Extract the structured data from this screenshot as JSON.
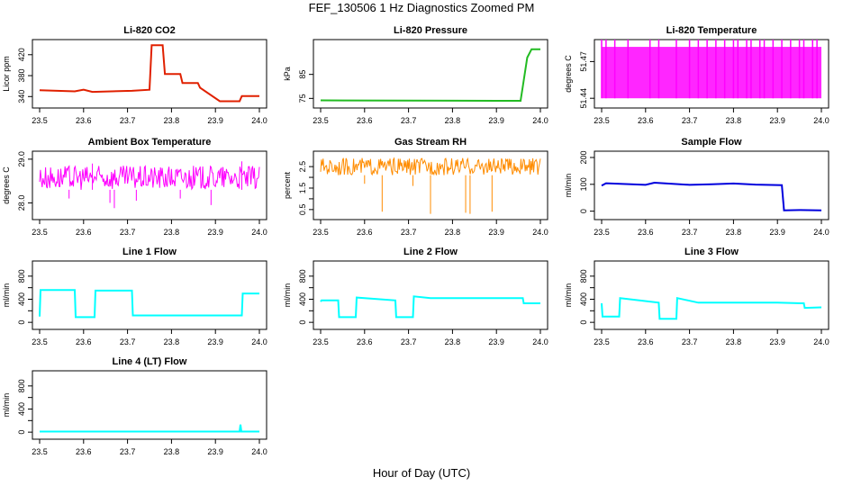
{
  "figure": {
    "title": "FEF_130506  1 Hz Diagnostics Zoomed PM",
    "xlabel": "Hour of Day (UTC)"
  },
  "chart_data": [
    {
      "type": "line",
      "title": "Li-820 CO2",
      "ylabel": "Licor ppm",
      "xlim": [
        23.5,
        24.0
      ],
      "ylim": [
        325,
        442
      ],
      "xticks": [
        "23.5",
        "23.6",
        "23.7",
        "23.8",
        "23.9",
        "24.0"
      ],
      "yticks": [
        340,
        380,
        420
      ],
      "ytick_labels": [
        "340",
        "380",
        "420"
      ],
      "color": "#e02000",
      "series": [
        {
          "x": [
            23.5,
            23.58,
            23.6,
            23.62,
            23.71,
            23.75,
            23.755,
            23.78,
            23.785,
            23.82,
            23.825,
            23.86,
            23.865,
            23.91,
            23.955,
            23.96,
            24.0
          ],
          "y": [
            352,
            350,
            353,
            349,
            351,
            353,
            438,
            438,
            383,
            383,
            366,
            366,
            357,
            331,
            331,
            341,
            341
          ]
        }
      ]
    },
    {
      "type": "line",
      "title": "Li-820 Pressure",
      "ylabel": "kPa",
      "xlim": [
        23.5,
        24.0
      ],
      "ylim": [
        72.5,
        98
      ],
      "xticks": [
        "23.5",
        "23.6",
        "23.7",
        "23.8",
        "23.9",
        "24.0"
      ],
      "yticks": [
        75,
        85
      ],
      "ytick_labels": [
        "75",
        "85"
      ],
      "color": "#22bb22",
      "series": [
        {
          "x": [
            23.5,
            23.9,
            23.955,
            23.96,
            23.97,
            23.98,
            24.0
          ],
          "y": [
            74.2,
            74.0,
            74.0,
            80.0,
            92.0,
            95.5,
            95.5
          ]
        }
      ]
    },
    {
      "type": "line",
      "title": "Li-820 Temperature",
      "ylabel": "degrees C",
      "xlim": [
        23.5,
        24.0
      ],
      "ylim": [
        51.435,
        51.485
      ],
      "xticks": [
        "23.5",
        "23.6",
        "23.7",
        "23.8",
        "23.9",
        "24.0"
      ],
      "yticks": [
        51.44,
        51.47
      ],
      "ytick_labels": [
        "51.44",
        "51.47"
      ],
      "color": "#ff00ff",
      "levels": [
        51.44,
        51.47,
        51.47
      ],
      "series": [
        {
          "x": [
            23.5,
            23.51,
            23.53,
            23.56,
            23.61,
            23.63,
            23.67,
            23.7,
            23.72,
            23.74,
            23.76,
            23.78,
            23.8,
            23.81,
            23.83,
            23.84,
            23.86,
            23.87,
            23.89,
            23.91,
            23.93,
            23.95,
            23.96,
            23.98,
            23.99
          ],
          "y": [
            51.482,
            51.482,
            51.482,
            51.482,
            51.482,
            51.482,
            51.482,
            51.482,
            51.482,
            51.482,
            51.482,
            51.482,
            51.482,
            51.482,
            51.482,
            51.482,
            51.482,
            51.482,
            51.482,
            51.482,
            51.482,
            51.482,
            51.482,
            51.482,
            51.482
          ]
        }
      ]
    },
    {
      "type": "line",
      "title": "Ambient Box Temperature",
      "ylabel": "degrees C",
      "xlim": [
        23.5,
        24.0
      ],
      "ylim": [
        27.7,
        29.1
      ],
      "xticks": [
        "23.5",
        "23.6",
        "23.7",
        "23.8",
        "23.9",
        "24.0"
      ],
      "yticks": [
        28.0,
        29.0
      ],
      "ytick_labels": [
        "28.0",
        "29.0"
      ],
      "color": "#ff00ff",
      "series": [
        {
          "x": [
            23.5,
            24.0
          ],
          "y": [
            28.55,
            28.55
          ]
        }
      ],
      "band": [
        28.3,
        28.85
      ],
      "spikes": [
        {
          "x": 23.567,
          "y": 28.1
        },
        {
          "x": 23.62,
          "y": 28.9
        },
        {
          "x": 23.66,
          "y": 28.0
        },
        {
          "x": 23.67,
          "y": 27.88
        },
        {
          "x": 23.72,
          "y": 28.05
        },
        {
          "x": 23.82,
          "y": 28.1
        },
        {
          "x": 23.89,
          "y": 27.95
        },
        {
          "x": 23.96,
          "y": 28.95
        }
      ]
    },
    {
      "type": "line",
      "title": "Gas Stream RH",
      "ylabel": "percent",
      "xlim": [
        23.5,
        24.0
      ],
      "ylim": [
        0.2,
        3.05
      ],
      "xticks": [
        "23.5",
        "23.6",
        "23.7",
        "23.8",
        "23.9",
        "24.0"
      ],
      "yticks": [
        0.5,
        1.0,
        1.5,
        2.0,
        2.5
      ],
      "ytick_labels": [
        "0.5",
        "1.5",
        "2.5"
      ],
      "color": "#ff8c00",
      "series": [
        {
          "x": [
            23.5,
            24.0
          ],
          "y": [
            2.65,
            2.65
          ]
        }
      ],
      "band": [
        2.1,
        2.9
      ],
      "spikes": [
        {
          "x": 23.64,
          "y": 0.4
        },
        {
          "x": 23.75,
          "y": 0.3
        },
        {
          "x": 23.83,
          "y": 0.35
        },
        {
          "x": 23.84,
          "y": 0.3
        },
        {
          "x": 23.89,
          "y": 0.4
        },
        {
          "x": 23.71,
          "y": 1.6
        },
        {
          "x": 23.6,
          "y": 1.7
        }
      ]
    },
    {
      "type": "line",
      "title": "Sample Flow",
      "ylabel": "ml/min",
      "xlim": [
        23.5,
        24.0
      ],
      "ylim": [
        -18,
        210
      ],
      "xticks": [
        "23.5",
        "23.6",
        "23.7",
        "23.8",
        "23.9",
        "24.0"
      ],
      "yticks": [
        0,
        100,
        200
      ],
      "ytick_labels": [
        "0",
        "100",
        "200"
      ],
      "color": "#0000dd",
      "series": [
        {
          "x": [
            23.5,
            23.51,
            23.6,
            23.62,
            23.7,
            23.75,
            23.8,
            23.85,
            23.91,
            23.915,
            23.95,
            24.0
          ],
          "y": [
            95,
            104,
            98,
            106,
            98,
            100,
            103,
            99,
            97,
            3,
            4,
            3
          ]
        }
      ]
    },
    {
      "type": "line",
      "title": "Line 1 Flow",
      "ylabel": "ml/min",
      "xlim": [
        23.5,
        24.0
      ],
      "ylim": [
        -60,
        1000
      ],
      "xticks": [
        "23.5",
        "23.6",
        "23.7",
        "23.8",
        "23.9",
        "24.0"
      ],
      "yticks": [
        0,
        200,
        400,
        600,
        800
      ],
      "ytick_labels": [
        "0",
        "400",
        "800"
      ],
      "color": "#00ffff",
      "series": [
        {
          "x": [
            23.5,
            23.502,
            23.58,
            23.582,
            23.625,
            23.627,
            23.71,
            23.712,
            23.75,
            23.96,
            23.962,
            24.0
          ],
          "y": [
            100,
            560,
            560,
            90,
            90,
            550,
            550,
            120,
            120,
            120,
            500,
            500
          ]
        }
      ]
    },
    {
      "type": "line",
      "title": "Line 2 Flow",
      "ylabel": "ml/min",
      "xlim": [
        23.5,
        24.0
      ],
      "ylim": [
        -60,
        1000
      ],
      "xticks": [
        "23.5",
        "23.6",
        "23.7",
        "23.8",
        "23.9",
        "24.0"
      ],
      "yticks": [
        0,
        200,
        400,
        600,
        800
      ],
      "ytick_labels": [
        "0",
        "400",
        "800"
      ],
      "color": "#00ffff",
      "series": [
        {
          "x": [
            23.5,
            23.502,
            23.54,
            23.542,
            23.58,
            23.582,
            23.67,
            23.672,
            23.71,
            23.712,
            23.75,
            23.96,
            23.962,
            24.0
          ],
          "y": [
            360,
            380,
            380,
            90,
            90,
            430,
            380,
            90,
            90,
            450,
            420,
            420,
            330,
            330
          ]
        }
      ]
    },
    {
      "type": "line",
      "title": "Line 3 Flow",
      "ylabel": "ml/min",
      "xlim": [
        23.5,
        24.0
      ],
      "ylim": [
        -60,
        1000
      ],
      "xticks": [
        "23.5",
        "23.6",
        "23.7",
        "23.8",
        "23.9",
        "24.0"
      ],
      "yticks": [
        0,
        200,
        400,
        600,
        800
      ],
      "ytick_labels": [
        "0",
        "400",
        "800"
      ],
      "color": "#00ffff",
      "series": [
        {
          "x": [
            23.5,
            23.502,
            23.54,
            23.542,
            23.63,
            23.632,
            23.67,
            23.672,
            23.72,
            23.9,
            23.96,
            23.962,
            24.0
          ],
          "y": [
            330,
            100,
            100,
            420,
            340,
            60,
            60,
            420,
            340,
            340,
            330,
            250,
            260
          ]
        }
      ]
    },
    {
      "type": "line",
      "title": "Line 4 (LT) Flow",
      "ylabel": "ml/min",
      "xlim": [
        23.5,
        24.0
      ],
      "ylim": [
        -60,
        1000
      ],
      "xticks": [
        "23.5",
        "23.6",
        "23.7",
        "23.8",
        "23.9",
        "24.0"
      ],
      "yticks": [
        0,
        200,
        400,
        600,
        800
      ],
      "ytick_labels": [
        "0",
        "400",
        "800"
      ],
      "color": "#00ffff",
      "series": [
        {
          "x": [
            23.5,
            23.955,
            23.957,
            23.959,
            24.0
          ],
          "y": [
            10,
            10,
            130,
            10,
            10
          ]
        }
      ]
    }
  ]
}
